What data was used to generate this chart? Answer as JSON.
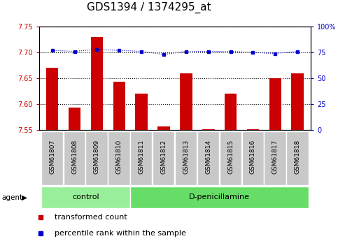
{
  "title": "GDS1394 / 1374295_at",
  "samples": [
    "GSM61807",
    "GSM61808",
    "GSM61809",
    "GSM61810",
    "GSM61811",
    "GSM61812",
    "GSM61813",
    "GSM61814",
    "GSM61815",
    "GSM61816",
    "GSM61817",
    "GSM61818"
  ],
  "red_values": [
    7.67,
    7.593,
    7.73,
    7.643,
    7.62,
    7.557,
    7.66,
    7.552,
    7.62,
    7.552,
    7.65,
    7.66
  ],
  "blue_values": [
    77,
    76,
    78,
    77,
    76,
    73,
    76,
    76,
    76,
    75,
    74,
    76
  ],
  "ylim_left": [
    7.55,
    7.75
  ],
  "ylim_right": [
    0,
    100
  ],
  "yticks_left": [
    7.55,
    7.6,
    7.65,
    7.7,
    7.75
  ],
  "yticks_right": [
    0,
    25,
    50,
    75,
    100
  ],
  "ytick_labels_right": [
    "0",
    "25",
    "50",
    "75",
    "100%"
  ],
  "bar_color": "#CC0000",
  "dot_color": "#0000CC",
  "baseline": 7.55,
  "control_n": 4,
  "treatment_n": 8,
  "control_label": "control",
  "treatment_label": "D-penicillamine",
  "agent_label": "agent",
  "legend_red": "transformed count",
  "legend_blue": "percentile rank within the sample",
  "gray_box_color": "#C8C8C8",
  "control_bg": "#99EE99",
  "treatment_bg": "#66DD66",
  "title_fontsize": 11,
  "tick_fontsize": 7,
  "label_fontsize": 8.5,
  "legend_fontsize": 8
}
